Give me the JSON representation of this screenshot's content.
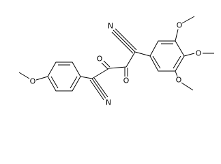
{
  "atoms": [
    {
      "label": "N"
    },
    {
      "label": "O"
    },
    {
      "label": "O"
    },
    {
      "label": "O"
    },
    {
      "label": "O"
    },
    {
      "label": "O"
    },
    {
      "label": "O"
    },
    {
      "label": "N"
    }
  ]
}
